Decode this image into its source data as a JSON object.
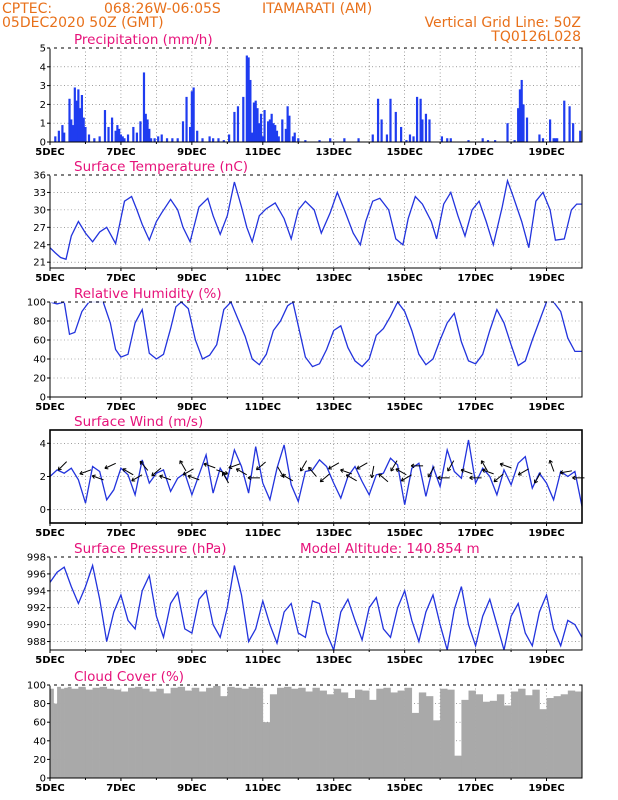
{
  "header": {
    "line1_left": "CPTEC:",
    "line1_coords": "068:26W-06:05S",
    "line1_station": "ITAMARATI (AM)",
    "line2_left": "05DEC2020 50Z (GMT)",
    "line2_right_top": "Vertical Grid Line: 50Z",
    "line2_right_bottom": "TQ0126L028"
  },
  "x_axis": {
    "labels": [
      "5DEC",
      "7DEC",
      "9DEC",
      "11DEC",
      "13DEC",
      "15DEC",
      "17DEC",
      "19DEC"
    ],
    "label_days": [
      0,
      2,
      4,
      6,
      8,
      10,
      12,
      14
    ],
    "range_days": [
      0,
      15
    ]
  },
  "colors": {
    "line": "#2233dd",
    "bar": "#1f3cf0",
    "cloud": "#a9a9a9",
    "grid": "#666666",
    "title": "#e6127a",
    "header": "#e8701a"
  },
  "chart_data": [
    {
      "id": "precip",
      "type": "bar",
      "title": "Precipitation (mm/h)",
      "ylim": [
        0,
        5
      ],
      "yticks": [
        0,
        1,
        2,
        3,
        4,
        5
      ],
      "extra_title": "",
      "x": [
        0.15,
        0.25,
        0.35,
        0.4,
        0.55,
        0.6,
        0.65,
        0.7,
        0.75,
        0.8,
        0.85,
        0.9,
        0.95,
        1.0,
        1.1,
        1.25,
        1.4,
        1.55,
        1.65,
        1.75,
        1.85,
        1.9,
        1.95,
        2.0,
        2.05,
        2.1,
        2.2,
        2.35,
        2.45,
        2.55,
        2.65,
        2.7,
        2.75,
        2.8,
        2.85,
        2.95,
        3.05,
        3.15,
        3.3,
        3.45,
        3.6,
        3.75,
        3.85,
        3.95,
        4.0,
        4.05,
        4.15,
        4.3,
        4.5,
        4.6,
        4.75,
        4.9,
        5.05,
        5.2,
        5.3,
        5.45,
        5.55,
        5.6,
        5.65,
        5.7,
        5.75,
        5.8,
        5.85,
        5.9,
        5.95,
        6.0,
        6.05,
        6.15,
        6.2,
        6.25,
        6.3,
        6.35,
        6.4,
        6.45,
        6.55,
        6.65,
        6.7,
        6.75,
        6.85,
        6.9,
        7.0,
        7.2,
        7.6,
        7.9,
        8.3,
        8.7,
        9.1,
        9.25,
        9.35,
        9.5,
        9.6,
        9.75,
        9.9,
        10.05,
        10.15,
        10.25,
        10.35,
        10.45,
        10.5,
        10.6,
        10.7,
        11.05,
        11.2,
        11.3,
        11.8,
        12.2,
        12.35,
        12.55,
        12.9,
        13.1,
        13.2,
        13.25,
        13.3,
        13.35,
        13.45,
        13.8,
        13.9,
        14.1,
        14.2,
        14.25,
        14.3,
        14.5,
        14.65,
        14.75,
        14.95
      ],
      "values": [
        0.3,
        0.6,
        0.9,
        0.5,
        2.3,
        1.2,
        0.9,
        2.9,
        2.2,
        2.8,
        1.8,
        2.5,
        1.3,
        0.8,
        0.4,
        0.2,
        0.3,
        1.7,
        0.8,
        1.3,
        0.6,
        0.9,
        0.7,
        0.4,
        0.3,
        0.2,
        0.4,
        0.8,
        0.5,
        1.1,
        3.7,
        1.5,
        1.2,
        0.7,
        0.2,
        0.2,
        0.3,
        0.4,
        0.2,
        0.2,
        0.2,
        1.1,
        2.4,
        0.8,
        2.7,
        2.9,
        0.6,
        0.2,
        0.3,
        0.2,
        0.2,
        0.1,
        0.4,
        1.6,
        1.9,
        2.4,
        4.6,
        4.5,
        3.3,
        0.5,
        2.1,
        2.2,
        1.8,
        1.0,
        1.5,
        0.3,
        1.7,
        1.1,
        1.2,
        1.5,
        1.0,
        0.9,
        0.6,
        0.3,
        1.2,
        0.7,
        1.9,
        1.4,
        0.3,
        0.5,
        0.2,
        0.1,
        0.1,
        0.2,
        0.2,
        0.2,
        0.4,
        2.3,
        1.2,
        0.4,
        2.3,
        1.6,
        0.8,
        0.1,
        0.4,
        0.3,
        2.4,
        2.3,
        1.2,
        1.5,
        1.2,
        0.3,
        0.2,
        0.2,
        0.1,
        0.2,
        0.1,
        0.1,
        1.0,
        0.1,
        1.8,
        2.8,
        3.3,
        2.0,
        1.3,
        0.4,
        0.2,
        1.2,
        0.2,
        0.2,
        0.2,
        2.2,
        1.9,
        1.0,
        0.6
      ]
    },
    {
      "id": "temp",
      "type": "line",
      "title": "Surface Temperature (nC)",
      "ylim": [
        20,
        36
      ],
      "yticks": [
        21,
        24,
        27,
        30,
        33,
        36
      ],
      "extra_title": "",
      "x": [
        0,
        0.15,
        0.3,
        0.45,
        0.6,
        0.8,
        1.0,
        1.2,
        1.4,
        1.6,
        1.85,
        2.1,
        2.3,
        2.45,
        2.6,
        2.8,
        3.0,
        3.15,
        3.4,
        3.6,
        3.75,
        3.95,
        4.2,
        4.45,
        4.6,
        4.8,
        5.0,
        5.2,
        5.4,
        5.55,
        5.7,
        5.9,
        6.1,
        6.35,
        6.6,
        6.8,
        7.0,
        7.2,
        7.45,
        7.65,
        7.9,
        8.1,
        8.3,
        8.55,
        8.75,
        8.9,
        9.1,
        9.3,
        9.55,
        9.75,
        9.95,
        10.1,
        10.3,
        10.5,
        10.75,
        10.9,
        11.1,
        11.3,
        11.5,
        11.7,
        11.9,
        12.1,
        12.3,
        12.5,
        12.75,
        12.9,
        13.05,
        13.3,
        13.5,
        13.7,
        13.9,
        14.1,
        14.25,
        14.5,
        14.7,
        14.85,
        15.0
      ],
      "values": [
        23.5,
        22.6,
        21.8,
        21.5,
        25.5,
        28.0,
        26.0,
        24.5,
        26.2,
        27.0,
        24.2,
        31.5,
        32.3,
        30.0,
        27.5,
        24.8,
        28.0,
        29.5,
        31.8,
        30.0,
        27.0,
        24.5,
        30.5,
        32.0,
        29.0,
        25.8,
        29.0,
        34.8,
        30.5,
        27.0,
        24.5,
        29.0,
        30.2,
        31.2,
        28.5,
        25.0,
        30.0,
        31.5,
        30.0,
        26.0,
        29.5,
        33.0,
        30.0,
        26.0,
        24.0,
        28.0,
        31.5,
        32.0,
        30.0,
        25.0,
        24.0,
        28.5,
        32.3,
        31.0,
        28.0,
        25.0,
        31.0,
        33.0,
        29.0,
        25.5,
        30.0,
        31.5,
        28.0,
        24.0,
        30.5,
        35.0,
        32.5,
        28.0,
        23.5,
        31.5,
        33.0,
        30.0,
        24.8,
        25.0,
        30.0,
        31.0,
        31.0
      ]
    },
    {
      "id": "rh",
      "type": "line",
      "title": "Relative Humidity (%)",
      "ylim": [
        0,
        100
      ],
      "yticks": [
        0,
        20,
        40,
        60,
        80,
        100
      ],
      "extra_title": "",
      "x": [
        0,
        0.2,
        0.4,
        0.55,
        0.7,
        0.9,
        1.1,
        1.3,
        1.5,
        1.7,
        1.85,
        2.0,
        2.2,
        2.4,
        2.6,
        2.8,
        3.0,
        3.2,
        3.4,
        3.55,
        3.7,
        3.9,
        4.1,
        4.3,
        4.5,
        4.7,
        4.9,
        5.1,
        5.3,
        5.5,
        5.7,
        5.9,
        6.1,
        6.3,
        6.5,
        6.7,
        6.85,
        7.0,
        7.2,
        7.4,
        7.6,
        7.8,
        8.0,
        8.2,
        8.4,
        8.6,
        8.8,
        9.0,
        9.2,
        9.4,
        9.6,
        9.8,
        10.0,
        10.2,
        10.4,
        10.6,
        10.8,
        11.0,
        11.2,
        11.4,
        11.6,
        11.8,
        12.0,
        12.2,
        12.4,
        12.6,
        12.8,
        13.0,
        13.2,
        13.4,
        13.6,
        13.8,
        14.0,
        14.2,
        14.4,
        14.6,
        14.8,
        15.0
      ],
      "values": [
        100,
        98,
        100,
        66,
        68,
        90,
        100,
        100,
        100,
        78,
        50,
        42,
        45,
        78,
        92,
        46,
        40,
        45,
        72,
        95,
        100,
        93,
        60,
        40,
        44,
        55,
        92,
        100,
        82,
        64,
        40,
        34,
        45,
        70,
        80,
        96,
        100,
        75,
        42,
        32,
        35,
        50,
        70,
        75,
        52,
        38,
        32,
        40,
        65,
        72,
        85,
        100,
        90,
        70,
        45,
        34,
        40,
        60,
        78,
        88,
        58,
        38,
        35,
        45,
        70,
        92,
        78,
        55,
        33,
        38,
        60,
        80,
        100,
        100,
        90,
        62,
        48,
        48
      ]
    },
    {
      "id": "wind",
      "type": "line",
      "title": "Surface Wind (m/s)",
      "ylim": [
        -0.8,
        4.8
      ],
      "yticks": [
        0,
        2,
        4
      ],
      "extra_title": "",
      "x": [
        0,
        0.2,
        0.4,
        0.6,
        0.8,
        1.0,
        1.2,
        1.4,
        1.6,
        1.8,
        2.0,
        2.2,
        2.4,
        2.6,
        2.8,
        3.0,
        3.2,
        3.4,
        3.6,
        3.8,
        4.0,
        4.2,
        4.4,
        4.6,
        4.8,
        5.0,
        5.2,
        5.4,
        5.6,
        5.8,
        6.0,
        6.2,
        6.4,
        6.6,
        6.8,
        7.0,
        7.2,
        7.4,
        7.6,
        7.8,
        8.0,
        8.2,
        8.4,
        8.6,
        8.8,
        9.0,
        9.2,
        9.4,
        9.6,
        9.8,
        10.0,
        10.2,
        10.4,
        10.6,
        10.8,
        11.0,
        11.2,
        11.4,
        11.6,
        11.8,
        12.0,
        12.2,
        12.4,
        12.6,
        12.8,
        13.0,
        13.2,
        13.4,
        13.6,
        13.8,
        14.0,
        14.2,
        14.4,
        14.6,
        14.8,
        15.0
      ],
      "values": [
        2.0,
        2.4,
        2.2,
        2.5,
        1.8,
        0.4,
        2.6,
        2.3,
        0.6,
        1.2,
        2.5,
        2.1,
        0.9,
        3.0,
        1.6,
        2.2,
        2.4,
        1.1,
        1.9,
        2.2,
        0.9,
        2.1,
        3.3,
        1.0,
        2.5,
        1.8,
        3.6,
        2.6,
        1.0,
        3.8,
        1.6,
        0.6,
        2.5,
        3.9,
        1.5,
        0.5,
        2.3,
        2.4,
        3.0,
        2.6,
        1.6,
        0.7,
        2.0,
        2.6,
        1.7,
        0.9,
        2.1,
        2.2,
        3.1,
        2.7,
        0.3,
        2.5,
        2.8,
        0.8,
        2.6,
        1.4,
        3.6,
        2.3,
        1.9,
        4.2,
        1.6,
        2.5,
        2.0,
        0.9,
        2.4,
        1.5,
        2.8,
        3.2,
        1.3,
        2.2,
        1.6,
        0.6,
        2.3,
        2.0,
        2.3,
        0.2
      ],
      "arrows_x": [
        0.35,
        1.0,
        1.35,
        1.7,
        2.2,
        2.45,
        2.65,
        3.0,
        3.25,
        3.75,
        3.9,
        4.05,
        4.5,
        4.85,
        4.95,
        5.2,
        5.4,
        5.75,
        5.95,
        6.5,
        6.7,
        7.15,
        7.4,
        7.75,
        8.0,
        8.35,
        8.5,
        8.8,
        9.1,
        9.4,
        9.7,
        9.9,
        10.05,
        10.35,
        10.75,
        11.1,
        11.3,
        11.75,
        12.0,
        12.25,
        12.35,
        12.65,
        12.85,
        13.35,
        13.75,
        14.15,
        14.55,
        14.9
      ],
      "arrows_deg": [
        135,
        160,
        200,
        155,
        210,
        150,
        230,
        140,
        200,
        240,
        150,
        200,
        200,
        20,
        240,
        160,
        210,
        180,
        140,
        60,
        210,
        120,
        230,
        140,
        150,
        200,
        210,
        150,
        100,
        220,
        120,
        210,
        150,
        180,
        120,
        180,
        120,
        200,
        180,
        240,
        200,
        140,
        200,
        150,
        120,
        250,
        170,
        180
      ]
    },
    {
      "id": "pres",
      "type": "line",
      "title": "Surface Pressure (hPa)",
      "extra_title": "Model Altitude: 140.854 m",
      "ylim": [
        987,
        998
      ],
      "yticks": [
        988,
        990,
        992,
        994,
        996,
        998
      ],
      "x": [
        0,
        0.2,
        0.4,
        0.6,
        0.8,
        1.0,
        1.2,
        1.4,
        1.6,
        1.8,
        2.0,
        2.2,
        2.4,
        2.6,
        2.8,
        3.0,
        3.2,
        3.4,
        3.6,
        3.8,
        4.0,
        4.2,
        4.4,
        4.6,
        4.8,
        5.0,
        5.2,
        5.4,
        5.6,
        5.8,
        6.0,
        6.2,
        6.4,
        6.6,
        6.8,
        7.0,
        7.2,
        7.4,
        7.6,
        7.8,
        8.0,
        8.2,
        8.4,
        8.6,
        8.8,
        9.0,
        9.2,
        9.4,
        9.6,
        9.8,
        10.0,
        10.2,
        10.4,
        10.6,
        10.8,
        11.0,
        11.2,
        11.4,
        11.6,
        11.8,
        12.0,
        12.2,
        12.4,
        12.6,
        12.8,
        13.0,
        13.2,
        13.4,
        13.6,
        13.8,
        14.0,
        14.2,
        14.4,
        14.6,
        14.8,
        15.0
      ],
      "values": [
        995,
        996.2,
        996.8,
        994.5,
        992.5,
        994.5,
        997.0,
        993.0,
        988.0,
        991.5,
        993.5,
        990.5,
        989.5,
        994.0,
        995.8,
        991.0,
        988.5,
        992.5,
        993.8,
        989.5,
        989.0,
        993.0,
        994.0,
        990.0,
        988.5,
        992.0,
        997.0,
        993.5,
        988.0,
        989.5,
        992.8,
        990.0,
        987.8,
        991.5,
        992.5,
        989.0,
        988.5,
        992.8,
        992.5,
        989.0,
        987.0,
        991.5,
        993.0,
        990.5,
        988.2,
        992.0,
        993.2,
        989.5,
        988.5,
        992.0,
        994.0,
        990.5,
        988.0,
        991.5,
        993.5,
        990.0,
        987.0,
        991.8,
        994.5,
        990.0,
        987.5,
        991.0,
        993.0,
        990.0,
        986.8,
        991.0,
        992.5,
        989.0,
        987.5,
        991.5,
        993.5,
        989.5,
        987.5,
        990.5,
        990.0,
        988.5
      ]
    },
    {
      "id": "cloud",
      "type": "area",
      "title": "Cloud Cover (%)",
      "ylim": [
        0,
        100
      ],
      "yticks": [
        0,
        20,
        40,
        60,
        80,
        100
      ],
      "extra_title": "",
      "x": [
        0,
        0.1,
        0.2,
        0.3,
        0.4,
        0.5,
        0.6,
        0.8,
        1.0,
        1.2,
        1.4,
        1.6,
        1.8,
        2.0,
        2.2,
        2.4,
        2.6,
        2.8,
        3.0,
        3.2,
        3.4,
        3.6,
        3.8,
        4.0,
        4.2,
        4.4,
        4.6,
        4.8,
        5.0,
        5.2,
        5.4,
        5.6,
        5.8,
        6.0,
        6.2,
        6.4,
        6.6,
        6.8,
        7.0,
        7.2,
        7.4,
        7.6,
        7.8,
        8.0,
        8.2,
        8.4,
        8.6,
        8.8,
        9.0,
        9.2,
        9.4,
        9.6,
        9.8,
        10.0,
        10.2,
        10.4,
        10.6,
        10.8,
        11.0,
        11.2,
        11.4,
        11.6,
        11.8,
        12.0,
        12.2,
        12.4,
        12.6,
        12.8,
        13.0,
        13.2,
        13.4,
        13.6,
        13.8,
        14.0,
        14.2,
        14.4,
        14.6,
        14.8,
        15.0
      ],
      "values": [
        96,
        80,
        98,
        96,
        97,
        98,
        96,
        98,
        95,
        97,
        98,
        96,
        95,
        93,
        97,
        98,
        96,
        93,
        96,
        91,
        97,
        98,
        94,
        97,
        93,
        97,
        99,
        88,
        98,
        97,
        96,
        98,
        97,
        60,
        90,
        97,
        98,
        96,
        97,
        93,
        97,
        94,
        90,
        96,
        92,
        86,
        95,
        94,
        84,
        96,
        97,
        92,
        94,
        97,
        70,
        92,
        88,
        62,
        96,
        95,
        24,
        84,
        94,
        90,
        82,
        83,
        90,
        78,
        93,
        96,
        89,
        95,
        74,
        86,
        88,
        90,
        94,
        93,
        90
      ]
    }
  ]
}
